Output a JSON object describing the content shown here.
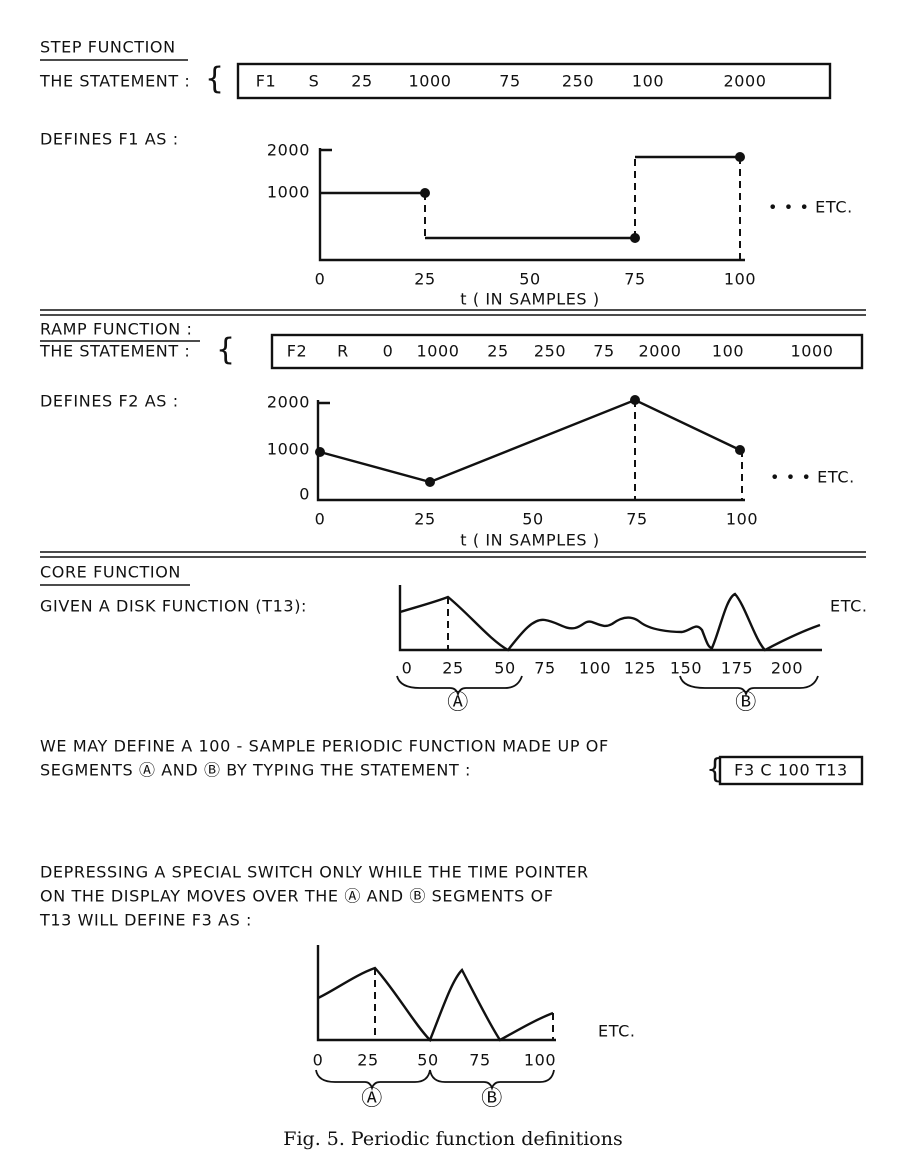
{
  "step": {
    "heading": "STEP FUNCTION",
    "statement_label": "THE STATEMENT :",
    "statement": [
      "F1",
      "S",
      "25",
      "1000",
      "75",
      "250",
      "100",
      "2000"
    ],
    "defines": "DEFINES F1 AS :",
    "y_ticks": [
      "2000",
      "1000"
    ],
    "x_ticks": [
      "0",
      "25",
      "50",
      "75",
      "100"
    ],
    "x_label": "t ( IN SAMPLES )",
    "etc": "• • • ETC."
  },
  "ramp": {
    "heading": "RAMP FUNCTION :",
    "statement_label": "THE STATEMENT :",
    "statement": [
      "F2",
      "R",
      "0",
      "1000",
      "25",
      "250",
      "75",
      "2000",
      "100",
      "1000"
    ],
    "defines": "DEFINES F2 AS :",
    "y_ticks": [
      "2000",
      "1000",
      "0"
    ],
    "x_ticks": [
      "0",
      "25",
      "50",
      "75",
      "100"
    ],
    "x_label": "t ( IN SAMPLES )",
    "etc": "• • • ETC."
  },
  "core": {
    "heading": "CORE FUNCTION",
    "given": "GIVEN A DISK FUNCTION (T13):",
    "x_ticks": [
      "0",
      "25",
      "50",
      "75",
      "100",
      "125",
      "150",
      "175",
      "200"
    ],
    "etc": "ETC.",
    "segment_a": "Ⓐ",
    "segment_b": "Ⓑ"
  },
  "paragraph1": {
    "lines": [
      "WE MAY DEFINE A 100 - SAMPLE PERIODIC FUNCTION MADE UP OF",
      "SEGMENTS Ⓐ AND Ⓑ BY TYPING THE STATEMENT :"
    ],
    "statement": "F3 C 100 T13"
  },
  "paragraph2": {
    "lines": [
      "DEPRESSING A SPECIAL SWITCH ONLY WHILE THE TIME POINTER",
      "ON THE DISPLAY MOVES OVER THE Ⓐ AND Ⓑ SEGMENTS OF",
      "T13 WILL DEFINE F3 AS :"
    ]
  },
  "result": {
    "x_ticks": [
      "0",
      "25",
      "50",
      "75",
      "100"
    ],
    "etc": "ETC.",
    "segment_a": "Ⓐ",
    "segment_b": "Ⓑ"
  },
  "caption": "Fig. 5. Periodic function definitions"
}
